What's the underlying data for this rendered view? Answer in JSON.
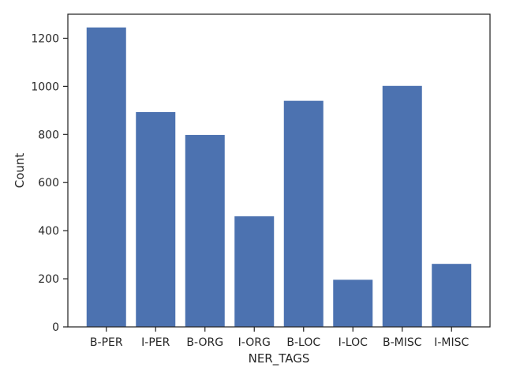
{
  "chart_data": {
    "type": "bar",
    "title": "",
    "xlabel": "NER_TAGS",
    "ylabel": "Count",
    "categories": [
      "B-PER",
      "I-PER",
      "B-ORG",
      "I-ORG",
      "B-LOC",
      "I-LOC",
      "B-MISC",
      "I-MISC"
    ],
    "values": [
      1245,
      893,
      798,
      460,
      940,
      196,
      1002,
      262
    ],
    "ylim": [
      0,
      1300
    ],
    "yticks": [
      0,
      200,
      400,
      600,
      800,
      1000,
      1200
    ],
    "grid": false,
    "bar_color": "#4c72b0"
  }
}
